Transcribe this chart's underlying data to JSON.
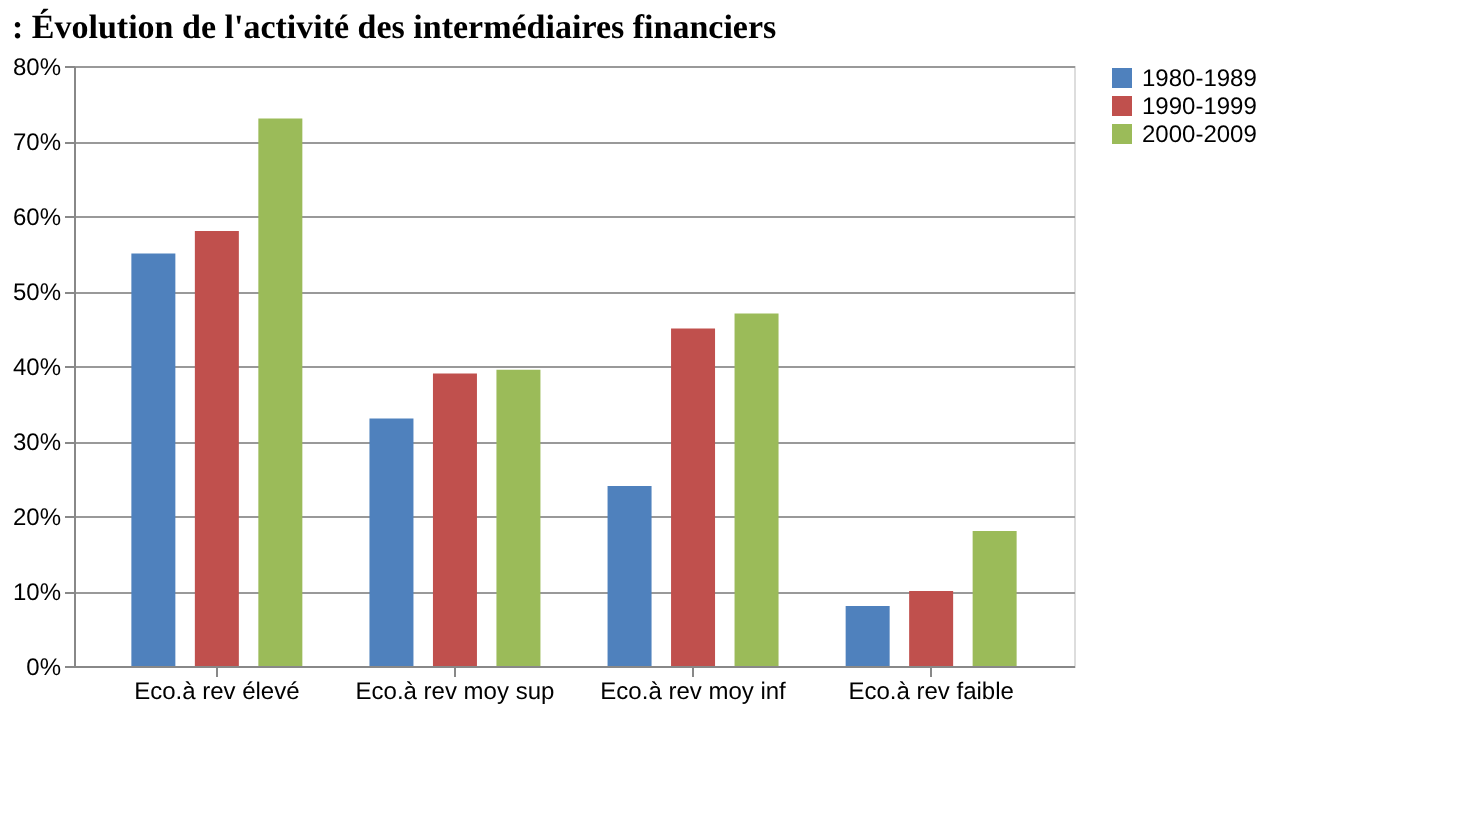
{
  "chart_data": {
    "type": "bar",
    "title": ": Évolution de l'activité des intermédiaires financiers",
    "categories": [
      "Eco.à rev élevé",
      "Eco.à rev moy sup",
      "Eco.à rev moy inf",
      "Eco.à rev faible"
    ],
    "series": [
      {
        "name": "1980-1989",
        "color": "#4f81bd",
        "values": [
          55,
          33,
          24,
          8
        ]
      },
      {
        "name": "1990-1999",
        "color": "#c0504d",
        "values": [
          58,
          39,
          45,
          10
        ]
      },
      {
        "name": "2000-2009",
        "color": "#9bbb59",
        "values": [
          73,
          39.5,
          47,
          18
        ]
      }
    ],
    "ylim": [
      0,
      80
    ],
    "yticks": [
      {
        "value": 0,
        "label": "0%"
      },
      {
        "value": 10,
        "label": "10%"
      },
      {
        "value": 20,
        "label": "20%"
      },
      {
        "value": 30,
        "label": "30%"
      },
      {
        "value": 40,
        "label": "40%"
      },
      {
        "value": 50,
        "label": "50%"
      },
      {
        "value": 60,
        "label": "60%"
      },
      {
        "value": 70,
        "label": "70%"
      },
      {
        "value": 80,
        "label": "80%"
      }
    ],
    "grid": "y",
    "legend": "right"
  }
}
